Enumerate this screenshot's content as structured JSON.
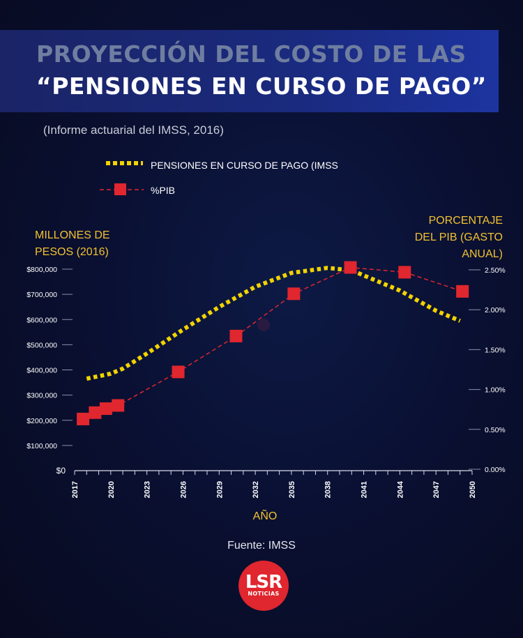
{
  "header": {
    "title_line1": "PROYECCIÓN DEL COSTO DE LAS",
    "title_line2": "“PENSIONES EN CURSO DE PAGO”",
    "subtitle": "(Informe actuarial del IMSS, 2016)"
  },
  "footer": {
    "source": "Fuente: IMSS",
    "logo_main": "LSR",
    "logo_sub": "NOTICIAS"
  },
  "colors": {
    "pension_line": "#f2d300",
    "pib_line": "#e0262e",
    "axis_label": "#f2c230",
    "tick_text": "#ffffff",
    "logo": "#e0262e"
  },
  "chart_data": {
    "type": "line",
    "title": "PROYECCIÓN DEL COSTO DE LAS “PENSIONES EN CURSO DE PAGO”",
    "subtitle": "(Informe actuarial del IMSS, 2016)",
    "xlabel": "AÑO",
    "ylabel_left": [
      "MILLONES DE",
      "PESOS (2016)"
    ],
    "ylabel_right": [
      "PORCENTAJE",
      "DEL PIB (GASTO",
      "ANUAL)"
    ],
    "x_ticks": [
      2017,
      2020,
      2023,
      2026,
      2029,
      2032,
      2035,
      2038,
      2041,
      2044,
      2047,
      2050
    ],
    "xlim": [
      2017,
      2050
    ],
    "y_left_ticks": [
      "$0",
      "$100,000",
      "$200,000",
      "$300,000",
      "$400,000",
      "$500,000",
      "$600,000",
      "$700,000",
      "$800,000"
    ],
    "y_left_lim": [
      0,
      800000
    ],
    "y_right_ticks": [
      "0.00%",
      "0.50%",
      "1.00%",
      "1.50%",
      "2.00%",
      "2.50%"
    ],
    "y_right_lim": [
      0,
      2.5
    ],
    "grid": false,
    "legend_position": "top-left",
    "series": [
      {
        "name": "PENSIONES EN CURSO DE PAGO (IMSS",
        "axis": "left",
        "style": "dotted",
        "x": [
          2018,
          2020,
          2021,
          2023,
          2026,
          2029,
          2032,
          2035,
          2038,
          2040,
          2044,
          2047,
          2049
        ],
        "y": [
          365000,
          385000,
          405000,
          465000,
          560000,
          650000,
          730000,
          785000,
          805000,
          795000,
          715000,
          635000,
          595000
        ]
      },
      {
        "name": "%PIB",
        "axis": "right",
        "style": "dashed-square",
        "x": [
          2017.7,
          2018.7,
          2019.6,
          2020.6,
          2025.6,
          2030.4,
          2035.2,
          2039.9,
          2044.4,
          2049.2
        ],
        "y": [
          0.63,
          0.71,
          0.76,
          0.8,
          1.22,
          1.67,
          2.2,
          2.53,
          2.47,
          2.23
        ]
      }
    ]
  }
}
